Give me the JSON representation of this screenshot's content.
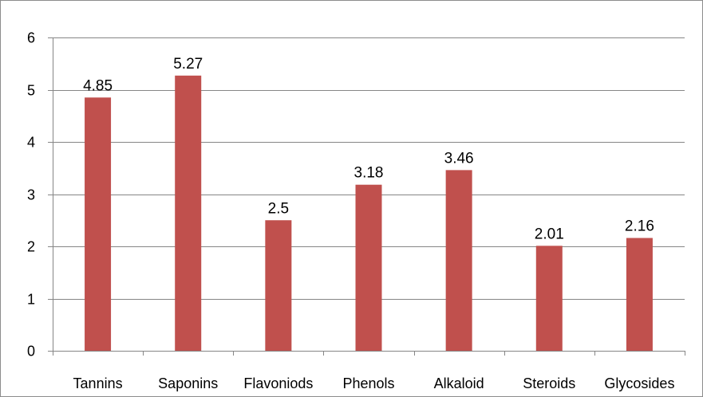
{
  "chart_data": {
    "type": "bar",
    "categories": [
      "Tannins",
      "Saponins",
      "Flavoniods",
      "Phenols",
      "Alkaloid",
      "Steroids",
      "Glycosides"
    ],
    "series": [
      {
        "values": [
          4.85,
          5.27,
          2.5,
          3.18,
          3.46,
          2.01,
          2.16
        ],
        "data_labels": [
          "4.85",
          "5.27",
          "2.5",
          "3.18",
          "3.46",
          "2.01",
          "2.16"
        ]
      }
    ],
    "ylim": [
      0,
      6
    ],
    "yticks": [
      0,
      1,
      2,
      3,
      4,
      5,
      6
    ],
    "grid": true,
    "legend": "none",
    "colors": {
      "bar": "#c0504d",
      "grid": "#868686",
      "axis": "#868686"
    }
  }
}
